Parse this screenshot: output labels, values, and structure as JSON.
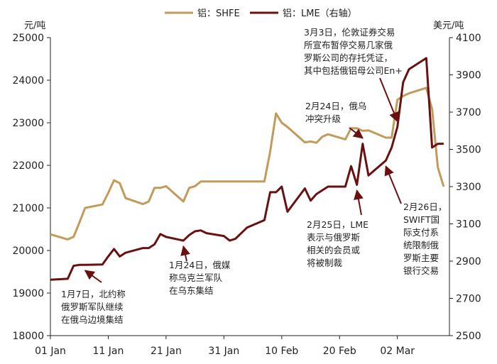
{
  "chart_data": {
    "type": "line",
    "title": "",
    "xlabel": "",
    "grid": false,
    "legend": {
      "placement": "top-center"
    },
    "y_left": {
      "unit": "元/吨",
      "ylim": [
        18000,
        25000
      ],
      "ticks": [
        18000,
        19000,
        20000,
        21000,
        22000,
        23000,
        24000,
        25000
      ]
    },
    "y_right": {
      "unit": "美元/吨",
      "ylim": [
        2500,
        4100
      ],
      "ticks": [
        2500,
        2700,
        2900,
        3100,
        3300,
        3500,
        3700,
        3900,
        4100
      ]
    },
    "x": {
      "type": "date",
      "range": [
        "2022-01-01",
        "2022-03-11"
      ],
      "ticks": [
        {
          "date": "2022-01-01",
          "label": "01 Jan"
        },
        {
          "date": "2022-01-11",
          "label": "11 Jan"
        },
        {
          "date": "2022-01-21",
          "label": "21 Jan"
        },
        {
          "date": "2022-01-31",
          "label": "31 Jan"
        },
        {
          "date": "2022-02-10",
          "label": "10 Feb"
        },
        {
          "date": "2022-02-20",
          "label": "20 Feb"
        },
        {
          "date": "2022-03-02",
          "label": "02 Mar"
        }
      ]
    },
    "series": [
      {
        "name": "铝：SHFE",
        "axis": "left",
        "color": "#c49a5a",
        "points": [
          [
            "2022-01-01",
            20380
          ],
          [
            "2022-01-04",
            20260
          ],
          [
            "2022-01-05",
            20320
          ],
          [
            "2022-01-06",
            20650
          ],
          [
            "2022-01-07",
            21000
          ],
          [
            "2022-01-10",
            21080
          ],
          [
            "2022-01-11",
            21350
          ],
          [
            "2022-01-12",
            21650
          ],
          [
            "2022-01-13",
            21580
          ],
          [
            "2022-01-14",
            21230
          ],
          [
            "2022-01-17",
            21090
          ],
          [
            "2022-01-18",
            21150
          ],
          [
            "2022-01-19",
            21470
          ],
          [
            "2022-01-20",
            21470
          ],
          [
            "2022-01-21",
            21510
          ],
          [
            "2022-01-24",
            21150
          ],
          [
            "2022-01-25",
            21470
          ],
          [
            "2022-01-26",
            21510
          ],
          [
            "2022-01-27",
            21620
          ],
          [
            "2022-02-07",
            21620
          ],
          [
            "2022-02-08",
            22320
          ],
          [
            "2022-02-09",
            23220
          ],
          [
            "2022-02-10",
            23000
          ],
          [
            "2022-02-11",
            22900
          ],
          [
            "2022-02-14",
            22540
          ],
          [
            "2022-02-15",
            22560
          ],
          [
            "2022-02-16",
            22530
          ],
          [
            "2022-02-17",
            22670
          ],
          [
            "2022-02-18",
            22730
          ],
          [
            "2022-02-21",
            22610
          ],
          [
            "2022-02-22",
            22870
          ],
          [
            "2022-02-23",
            22870
          ],
          [
            "2022-02-24",
            22810
          ],
          [
            "2022-02-25",
            22820
          ],
          [
            "2022-02-28",
            22650
          ],
          [
            "2022-03-01",
            22650
          ],
          [
            "2022-03-02",
            23540
          ],
          [
            "2022-03-03",
            23630
          ],
          [
            "2022-03-04",
            23690
          ],
          [
            "2022-03-07",
            23820
          ],
          [
            "2022-03-08",
            23320
          ],
          [
            "2022-03-09",
            21950
          ],
          [
            "2022-03-10",
            21500
          ]
        ]
      },
      {
        "name": "铝：LME（右轴）",
        "axis": "right",
        "color": "#6b1010",
        "points": [
          [
            "2022-01-01",
            2800
          ],
          [
            "2022-01-04",
            2805
          ],
          [
            "2022-01-05",
            2875
          ],
          [
            "2022-01-06",
            2880
          ],
          [
            "2022-01-07",
            2880
          ],
          [
            "2022-01-10",
            2882
          ],
          [
            "2022-01-11",
            2925
          ],
          [
            "2022-01-12",
            2965
          ],
          [
            "2022-01-13",
            2925
          ],
          [
            "2022-01-14",
            2945
          ],
          [
            "2022-01-17",
            2970
          ],
          [
            "2022-01-18",
            2970
          ],
          [
            "2022-01-19",
            2990
          ],
          [
            "2022-01-20",
            3045
          ],
          [
            "2022-01-21",
            3030
          ],
          [
            "2022-01-24",
            3010
          ],
          [
            "2022-01-25",
            3040
          ],
          [
            "2022-01-26",
            3060
          ],
          [
            "2022-01-27",
            3065
          ],
          [
            "2022-01-28",
            3050
          ],
          [
            "2022-01-31",
            3035
          ],
          [
            "2022-02-01",
            3010
          ],
          [
            "2022-02-02",
            3020
          ],
          [
            "2022-02-03",
            3050
          ],
          [
            "2022-02-04",
            3080
          ],
          [
            "2022-02-07",
            3120
          ],
          [
            "2022-02-08",
            3270
          ],
          [
            "2022-02-09",
            3270
          ],
          [
            "2022-02-10",
            3300
          ],
          [
            "2022-02-11",
            3165
          ],
          [
            "2022-02-14",
            3290
          ],
          [
            "2022-02-15",
            3225
          ],
          [
            "2022-02-16",
            3260
          ],
          [
            "2022-02-17",
            3280
          ],
          [
            "2022-02-18",
            3300
          ],
          [
            "2022-02-21",
            3300
          ],
          [
            "2022-02-22",
            3410
          ],
          [
            "2022-02-23",
            3310
          ],
          [
            "2022-02-24",
            3530
          ],
          [
            "2022-02-25",
            3360
          ],
          [
            "2022-02-28",
            3440
          ],
          [
            "2022-03-01",
            3510
          ],
          [
            "2022-03-02",
            3620
          ],
          [
            "2022-03-03",
            3860
          ],
          [
            "2022-03-04",
            3930
          ],
          [
            "2022-03-07",
            3990
          ],
          [
            "2022-03-08",
            3510
          ],
          [
            "2022-03-09",
            3530
          ],
          [
            "2022-03-10",
            3530
          ]
        ]
      }
    ],
    "annotations": [
      {
        "lines": [
          "1月7日，北约称",
          "俄罗斯军队继续",
          "在俄乌边境集结"
        ],
        "anchor": {
          "date": "2022-01-07",
          "axis": "right",
          "value": 2880
        },
        "arrow": "up"
      },
      {
        "lines": [
          "1月24日，俄媒",
          "称乌克兰军队",
          "在乌东集结"
        ],
        "anchor": {
          "date": "2022-01-24",
          "axis": "right",
          "value": 3010
        },
        "arrow": "up"
      },
      {
        "lines": [
          "2月24日，俄乌",
          "冲突升级"
        ],
        "anchor": {
          "date": "2022-02-24",
          "axis": "right",
          "value": 3530
        },
        "arrow": "down"
      },
      {
        "lines": [
          "2月25日，LME",
          "表示与俄罗斯",
          "相关的会员或",
          "将被制裁"
        ],
        "anchor": {
          "date": "2022-02-23",
          "axis": "right",
          "value": 3310
        },
        "arrow": "up"
      },
      {
        "lines": [
          "2月26日，",
          "SWIFT国",
          "际支付系",
          "统限制俄",
          "罗斯主要",
          "银行交易"
        ],
        "anchor": {
          "date": "2022-02-28",
          "axis": "right",
          "value": 3440
        },
        "arrow": "up"
      },
      {
        "lines": [
          "3月3日，伦敦证券交易",
          "所宣布暂停交易几家俄",
          "罗斯公司的存托凭证，",
          "其中包括俄铝母公司En+"
        ],
        "anchor": {
          "date": "2022-03-02",
          "axis": "right",
          "value": 3620
        },
        "arrow": "down"
      }
    ]
  }
}
